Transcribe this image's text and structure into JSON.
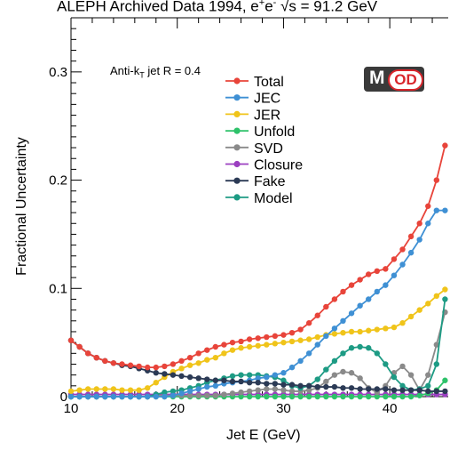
{
  "title_prefix": "ALEPH Archived Data 1994, e",
  "title_sup1": "+",
  "title_mid": "e",
  "title_sup2": "-",
  "title_sqrt": "√s",
  "title_suffix": " = 91.2 GeV",
  "jet_label_prefix": "Anti-k",
  "jet_label_sub": "T",
  "jet_label_suffix": " jet R = 0.4",
  "logo": {
    "m": "M",
    "od": "OD"
  },
  "chart_data": {
    "type": "line",
    "xlabel": "Jet E (GeV)",
    "ylabel": "Fractional Uncertainty",
    "xlim": [
      10,
      45.5
    ],
    "ylim": [
      0,
      0.35
    ],
    "x_ticks": [
      10,
      20,
      30,
      40
    ],
    "y_ticks": [
      0,
      0.1,
      0.2,
      0.3
    ],
    "y_tick_labels": [
      "0",
      "0.1",
      "0.2",
      "0.3"
    ],
    "legend_position": "top-center",
    "grid": false,
    "x": [
      10,
      10.8,
      11.6,
      12.4,
      13.2,
      14.0,
      14.8,
      15.6,
      16.4,
      17.2,
      18.0,
      18.8,
      19.6,
      20.4,
      21.2,
      22.0,
      22.8,
      23.6,
      24.4,
      25.2,
      26.0,
      26.8,
      27.6,
      28.4,
      29.2,
      30.0,
      30.8,
      31.6,
      32.4,
      33.2,
      34.0,
      34.8,
      35.6,
      36.4,
      37.2,
      38.0,
      38.8,
      39.6,
      40.4,
      41.2,
      42.0,
      42.8,
      43.6,
      44.4,
      45.2
    ],
    "series": [
      {
        "name": "Total",
        "color": "#e8443a",
        "values": [
          0.052,
          0.046,
          0.04,
          0.036,
          0.033,
          0.031,
          0.03,
          0.029,
          0.028,
          0.027,
          0.027,
          0.028,
          0.03,
          0.033,
          0.036,
          0.04,
          0.043,
          0.046,
          0.048,
          0.05,
          0.051,
          0.053,
          0.054,
          0.055,
          0.056,
          0.057,
          0.059,
          0.062,
          0.068,
          0.075,
          0.083,
          0.09,
          0.097,
          0.103,
          0.108,
          0.113,
          0.116,
          0.118,
          0.127,
          0.136,
          0.148,
          0.16,
          0.176,
          0.2,
          0.232
        ]
      },
      {
        "name": "JEC",
        "color": "#3f90d4",
        "values": [
          0.0,
          0.0,
          0.0,
          0.0,
          0.0,
          0.0,
          0.0,
          0.0,
          0.0,
          0.0,
          0.0,
          0.0,
          0.001,
          0.003,
          0.005,
          0.007,
          0.009,
          0.01,
          0.012,
          0.013,
          0.014,
          0.015,
          0.017,
          0.018,
          0.02,
          0.022,
          0.027,
          0.033,
          0.04,
          0.048,
          0.056,
          0.063,
          0.07,
          0.077,
          0.084,
          0.09,
          0.097,
          0.103,
          0.112,
          0.122,
          0.133,
          0.145,
          0.16,
          0.172,
          0.172
        ]
      },
      {
        "name": "JER",
        "color": "#f0c41a",
        "values": [
          0.005,
          0.006,
          0.007,
          0.007,
          0.007,
          0.007,
          0.006,
          0.006,
          0.006,
          0.008,
          0.013,
          0.018,
          0.023,
          0.026,
          0.029,
          0.031,
          0.034,
          0.036,
          0.04,
          0.043,
          0.045,
          0.046,
          0.047,
          0.048,
          0.049,
          0.05,
          0.051,
          0.052,
          0.053,
          0.055,
          0.057,
          0.058,
          0.059,
          0.06,
          0.06,
          0.061,
          0.062,
          0.063,
          0.064,
          0.068,
          0.074,
          0.08,
          0.086,
          0.093,
          0.099
        ]
      },
      {
        "name": "Unfold",
        "color": "#2ec26a",
        "values": [
          0.0,
          0.0,
          0.0,
          0.0,
          0.0,
          0.0,
          0.0,
          0.0,
          0.0,
          0.0,
          0.0,
          0.0,
          0.0,
          0.0,
          0.0,
          0.0,
          0.0,
          0.0,
          0.0,
          0.0,
          0.0,
          0.0,
          0.0,
          0.0,
          0.0,
          0.0,
          0.0,
          0.0,
          0.0,
          0.0,
          0.0,
          0.0,
          0.0,
          0.0,
          0.0,
          0.0,
          0.0,
          0.0,
          0.0,
          0.0,
          0.0,
          0.001,
          0.003,
          0.006,
          0.015
        ]
      },
      {
        "name": "SVD",
        "color": "#8a8a8a",
        "values": [
          0.0,
          0.0,
          0.0,
          0.0,
          0.0,
          0.0,
          0.0,
          0.0,
          0.0,
          0.0,
          0.001,
          0.001,
          0.001,
          0.001,
          0.001,
          0.001,
          0.001,
          0.001,
          0.002,
          0.003,
          0.004,
          0.005,
          0.006,
          0.007,
          0.007,
          0.006,
          0.005,
          0.005,
          0.006,
          0.008,
          0.014,
          0.02,
          0.023,
          0.022,
          0.017,
          0.008,
          0.004,
          0.01,
          0.022,
          0.028,
          0.02,
          0.006,
          0.02,
          0.048,
          0.078
        ]
      },
      {
        "name": "Closure",
        "color": "#9b3fc0",
        "values": [
          0.002,
          0.002,
          0.002,
          0.002,
          0.002,
          0.002,
          0.002,
          0.002,
          0.002,
          0.002,
          0.002,
          0.002,
          0.002,
          0.002,
          0.002,
          0.002,
          0.002,
          0.002,
          0.002,
          0.002,
          0.002,
          0.002,
          0.002,
          0.002,
          0.002,
          0.002,
          0.002,
          0.002,
          0.002,
          0.002,
          0.002,
          0.002,
          0.002,
          0.002,
          0.002,
          0.002,
          0.002,
          0.002,
          0.002,
          0.002,
          0.002,
          0.002,
          0.002,
          0.002,
          0.002
        ]
      },
      {
        "name": "Fake",
        "color": "#2b3a55",
        "values": [
          0.052,
          0.046,
          0.04,
          0.036,
          0.033,
          0.031,
          0.029,
          0.028,
          0.026,
          0.024,
          0.022,
          0.021,
          0.02,
          0.019,
          0.018,
          0.017,
          0.016,
          0.015,
          0.015,
          0.014,
          0.014,
          0.013,
          0.013,
          0.012,
          0.012,
          0.011,
          0.011,
          0.01,
          0.01,
          0.009,
          0.009,
          0.009,
          0.008,
          0.008,
          0.007,
          0.007,
          0.007,
          0.007,
          0.006,
          0.006,
          0.006,
          0.006,
          0.005,
          0.005,
          0.005
        ]
      },
      {
        "name": "Model",
        "color": "#1d9b84",
        "values": [
          0.0,
          0.0,
          0.0,
          0.0,
          0.0,
          0.0,
          0.0,
          0.0,
          0.0,
          0.0,
          0.002,
          0.004,
          0.005,
          0.006,
          0.008,
          0.01,
          0.013,
          0.015,
          0.017,
          0.019,
          0.02,
          0.02,
          0.02,
          0.019,
          0.018,
          0.015,
          0.01,
          0.008,
          0.01,
          0.016,
          0.025,
          0.033,
          0.04,
          0.045,
          0.046,
          0.045,
          0.04,
          0.03,
          0.018,
          0.01,
          0.006,
          0.007,
          0.01,
          0.03,
          0.09
        ]
      }
    ]
  }
}
